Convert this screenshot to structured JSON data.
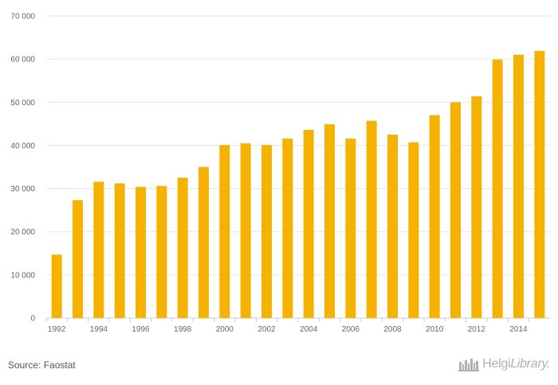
{
  "chart_data": {
    "type": "bar",
    "categories": [
      "1992",
      "1993",
      "1994",
      "1995",
      "1996",
      "1997",
      "1998",
      "1999",
      "2000",
      "2001",
      "2002",
      "2003",
      "2004",
      "2005",
      "2006",
      "2007",
      "2008",
      "2009",
      "2010",
      "2011",
      "2012",
      "2013",
      "2014",
      "2015"
    ],
    "x_tick_labels": [
      "1992",
      "1994",
      "1996",
      "1998",
      "2000",
      "2002",
      "2004",
      "2006",
      "2008",
      "2010",
      "2012",
      "2014"
    ],
    "values": [
      14700,
      27300,
      31600,
      31200,
      30400,
      30600,
      32500,
      35000,
      40100,
      40500,
      40100,
      41600,
      43600,
      44900,
      41600,
      45700,
      42500,
      40700,
      47000,
      50000,
      51400,
      59900,
      61000,
      61900
    ],
    "y_tick_labels": [
      "0",
      "10 000",
      "20 000",
      "30 000",
      "40 000",
      "50 000",
      "60 000",
      "70 000"
    ],
    "ylim": [
      0,
      70000
    ],
    "title": "",
    "xlabel": "",
    "ylabel": "",
    "grid": true,
    "bar_color": "#f5b200",
    "grid_color": "#e6e6e6"
  },
  "footer": {
    "source": "Source: Faostat",
    "logo_main": "Helgi",
    "logo_italic": "Library."
  }
}
